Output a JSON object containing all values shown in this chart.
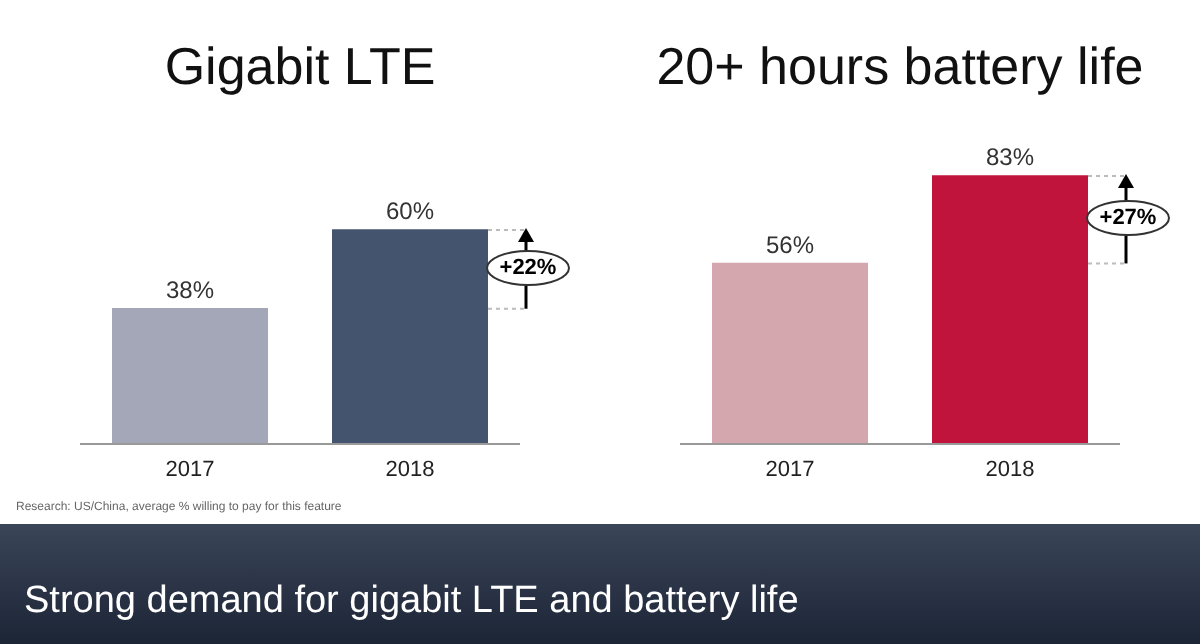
{
  "chart_data": [
    {
      "type": "bar",
      "title": "Gigabit LTE",
      "categories": [
        "2017",
        "2018"
      ],
      "values": [
        38,
        60
      ],
      "colors": [
        "#a3a7b8",
        "#44546e"
      ],
      "value_labels": [
        "38%",
        "60%"
      ],
      "annotations": [
        "+22%",
        "Research: US/China, average % willing to pay for this feature"
      ]
    },
    {
      "type": "bar",
      "title": "20+ hours battery life",
      "categories": [
        "2017",
        "2018"
      ],
      "values": [
        56,
        83
      ],
      "colors": [
        "#d4a6ad",
        "#c0143c"
      ],
      "value_labels": [
        "56%",
        "83%"
      ],
      "annotations": [
        "+27%",
        "Strong demand for gigabit LTE and battery life"
      ]
    }
  ]
}
